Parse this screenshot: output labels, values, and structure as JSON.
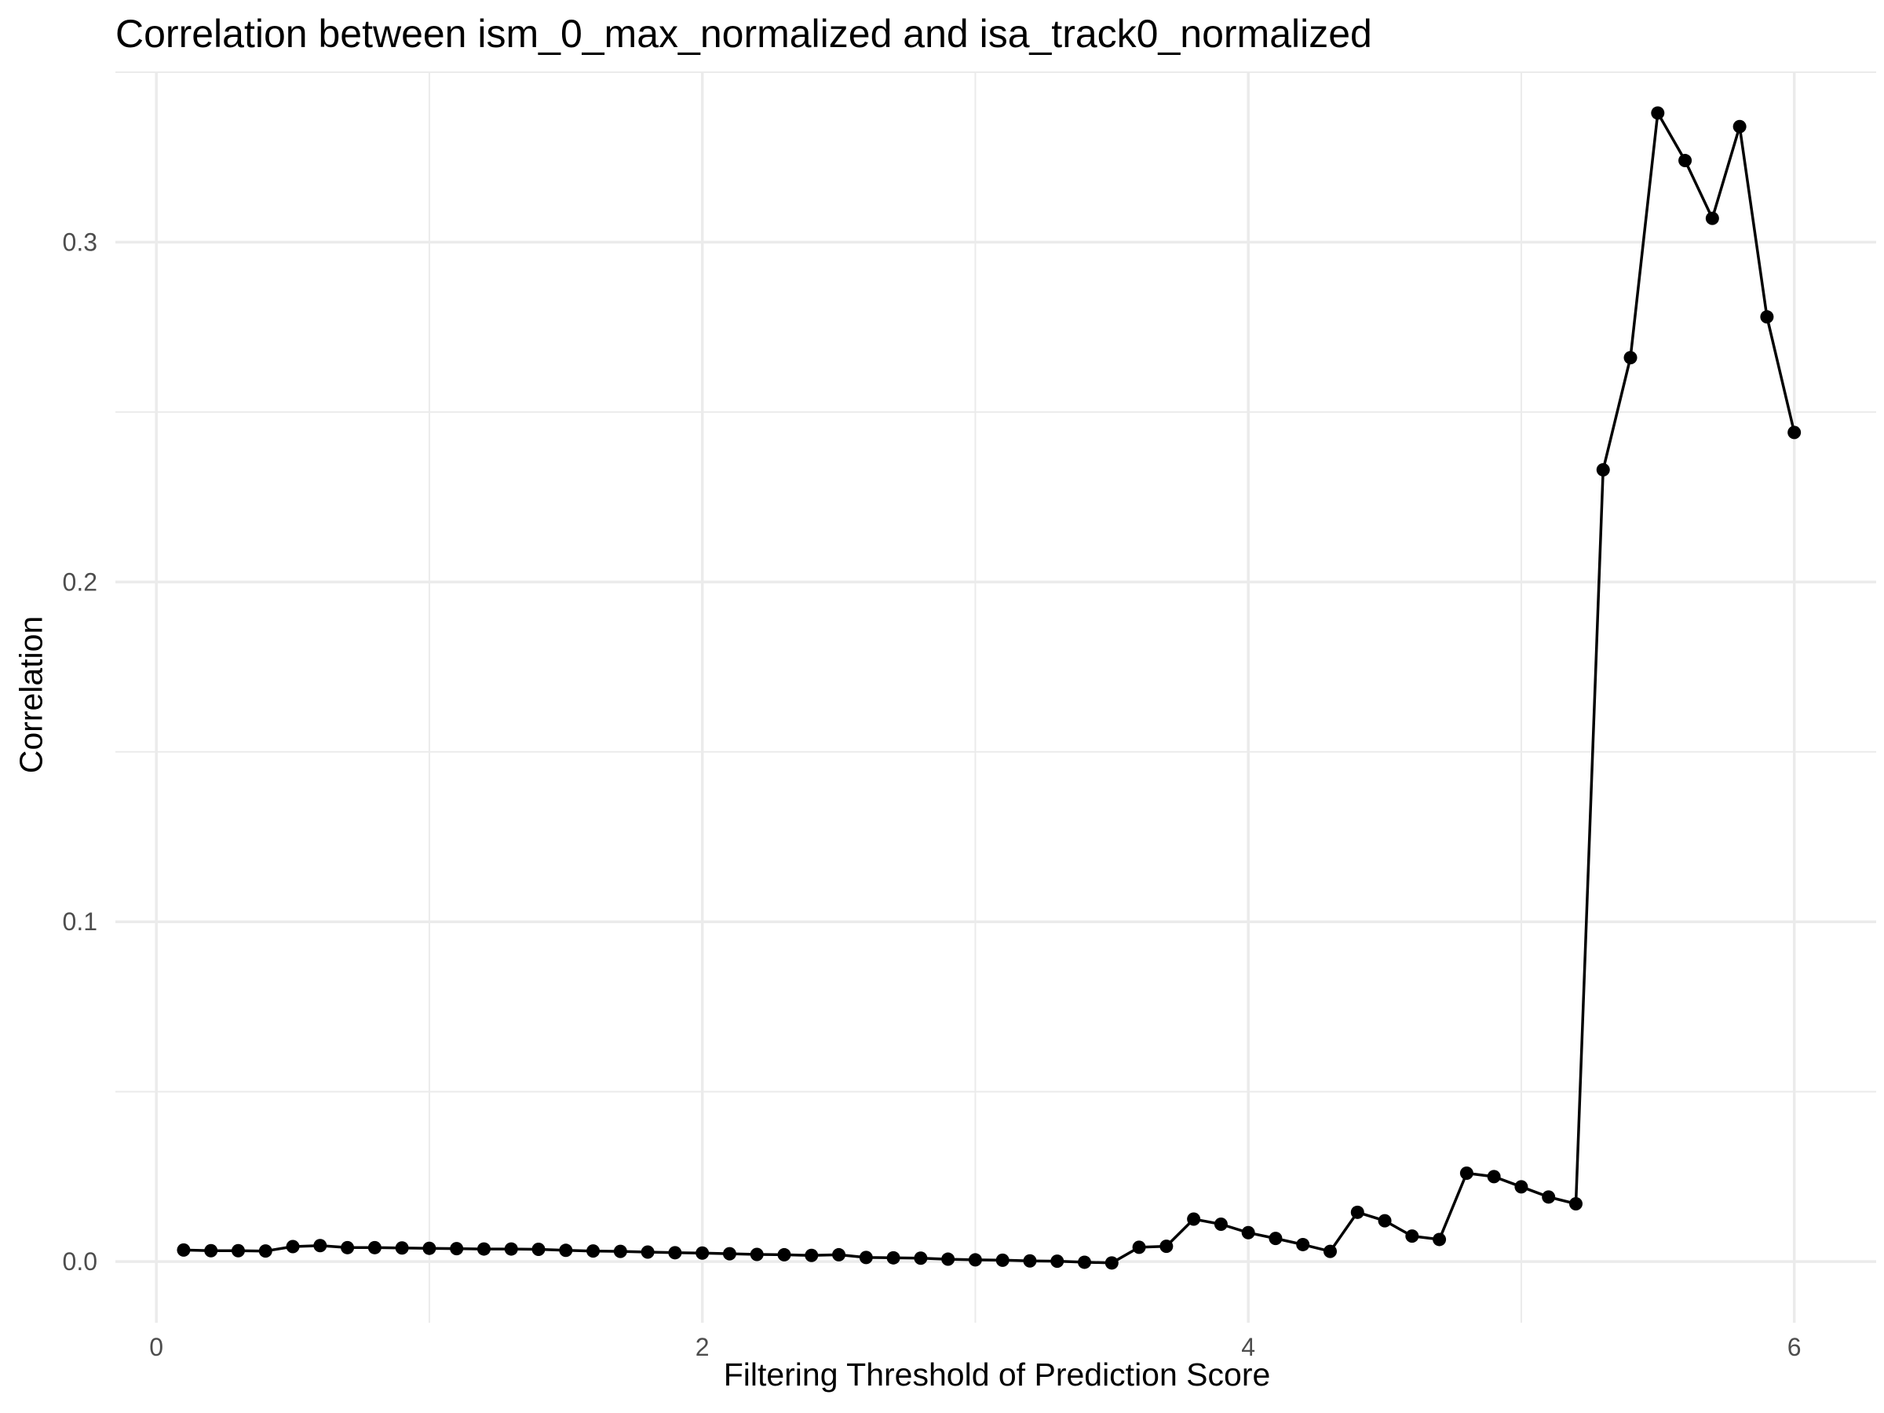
{
  "chart_data": {
    "type": "line",
    "title": "Correlation between ism_0_max_normalized and isa_track0_normalized",
    "xlabel": "Filtering Threshold of Prediction Score",
    "ylabel": "Correlation",
    "xlim": [
      -0.15,
      6.3
    ],
    "ylim": [
      -0.018,
      0.35
    ],
    "x_ticks": [
      0,
      2,
      4,
      6
    ],
    "x_tick_labels": [
      "0",
      "2",
      "4",
      "6"
    ],
    "y_ticks": [
      0.0,
      0.1,
      0.2,
      0.3
    ],
    "y_tick_labels": [
      "0.0",
      "0.1",
      "0.2",
      "0.3"
    ],
    "grid": true,
    "series": [
      {
        "color": "#000000",
        "x": [
          0.1,
          0.2,
          0.3,
          0.4,
          0.5,
          0.6,
          0.7,
          0.8,
          0.9,
          1.0,
          1.1,
          1.2,
          1.3,
          1.4,
          1.5,
          1.6,
          1.7,
          1.8,
          1.9,
          2.0,
          2.1,
          2.2,
          2.3,
          2.4,
          2.5,
          2.6,
          2.7,
          2.8,
          2.9,
          3.0,
          3.1,
          3.2,
          3.3,
          3.4,
          3.5,
          3.6,
          3.7,
          3.8,
          3.9,
          4.0,
          4.1,
          4.2,
          4.3,
          4.4,
          4.5,
          4.6,
          4.7,
          4.8,
          4.9,
          5.0,
          5.1,
          5.2,
          5.3,
          5.4,
          5.5,
          5.6,
          5.7,
          5.8,
          5.9,
          6.0
        ],
        "y": [
          0.0034,
          0.0032,
          0.0032,
          0.0031,
          0.0044,
          0.0047,
          0.0041,
          0.0041,
          0.004,
          0.0039,
          0.0038,
          0.0037,
          0.0037,
          0.0036,
          0.0033,
          0.0031,
          0.003,
          0.0028,
          0.0026,
          0.0025,
          0.0023,
          0.0021,
          0.002,
          0.0018,
          0.002,
          0.0012,
          0.0011,
          0.001,
          0.0007,
          0.0005,
          0.0004,
          0.0002,
          0.0001,
          -0.0002,
          -0.0004,
          0.0042,
          0.0045,
          0.0125,
          0.011,
          0.0085,
          0.0068,
          0.005,
          0.003,
          0.0145,
          0.012,
          0.0075,
          0.0065,
          0.026,
          0.025,
          0.022,
          0.019,
          0.017,
          0.233,
          0.266,
          0.338,
          0.324,
          0.307,
          0.334,
          0.278,
          0.244
        ]
      }
    ]
  }
}
